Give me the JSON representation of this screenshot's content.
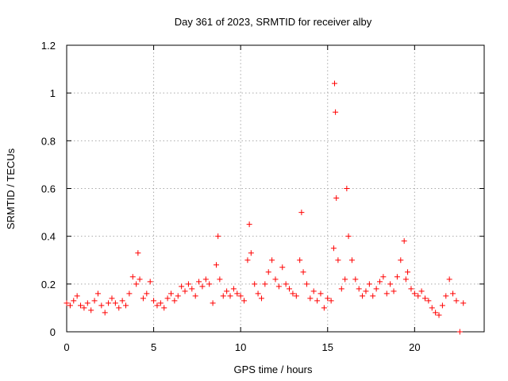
{
  "chart_data": {
    "type": "scatter",
    "title": "Day 361 of 2023, SRMTID for receiver alby",
    "xlabel": "GPS time / hours",
    "ylabel": "SRMTID / TECUs",
    "xlim": [
      0,
      24
    ],
    "ylim": [
      0,
      1.2
    ],
    "x_ticks": [
      0,
      5,
      10,
      15,
      20
    ],
    "x_tick_labels": [
      "0",
      "5",
      "10",
      "15",
      "20"
    ],
    "y_ticks": [
      0,
      0.2,
      0.4,
      0.6,
      0.8,
      1.0,
      1.2
    ],
    "y_tick_labels": [
      "0",
      "0.2",
      "0.4",
      "0.6",
      "0.8",
      "1",
      "1.2"
    ],
    "grid": true,
    "marker": "+",
    "color": "#ff0000",
    "series": [
      {
        "name": "SRMTID",
        "x": [
          0.0,
          0.2,
          0.4,
          0.6,
          0.8,
          1.0,
          1.2,
          1.4,
          1.6,
          1.8,
          2.0,
          2.2,
          2.4,
          2.6,
          2.8,
          3.0,
          3.2,
          3.4,
          3.6,
          3.8,
          4.0,
          4.1,
          4.2,
          4.4,
          4.6,
          4.8,
          5.0,
          5.2,
          5.4,
          5.6,
          5.8,
          6.0,
          6.2,
          6.4,
          6.6,
          6.8,
          7.0,
          7.2,
          7.4,
          7.6,
          7.8,
          8.0,
          8.2,
          8.4,
          8.6,
          8.7,
          8.8,
          9.0,
          9.2,
          9.4,
          9.6,
          9.8,
          10.0,
          10.2,
          10.4,
          10.5,
          10.6,
          10.8,
          11.0,
          11.2,
          11.4,
          11.6,
          11.8,
          12.0,
          12.2,
          12.4,
          12.6,
          12.8,
          13.0,
          13.2,
          13.4,
          13.5,
          13.6,
          13.8,
          14.0,
          14.2,
          14.4,
          14.6,
          14.8,
          15.0,
          15.2,
          15.35,
          15.4,
          15.45,
          15.5,
          15.6,
          15.8,
          16.0,
          16.1,
          16.2,
          16.4,
          16.6,
          16.8,
          17.0,
          17.2,
          17.4,
          17.6,
          17.8,
          18.0,
          18.2,
          18.4,
          18.6,
          18.8,
          19.0,
          19.2,
          19.4,
          19.5,
          19.6,
          19.8,
          20.0,
          20.2,
          20.4,
          20.6,
          20.8,
          21.0,
          21.2,
          21.4,
          21.6,
          21.8,
          22.0,
          22.2,
          22.4,
          22.6,
          22.8
        ],
        "y": [
          0.12,
          0.11,
          0.13,
          0.15,
          0.11,
          0.1,
          0.12,
          0.09,
          0.13,
          0.16,
          0.11,
          0.08,
          0.12,
          0.14,
          0.12,
          0.1,
          0.13,
          0.11,
          0.16,
          0.23,
          0.2,
          0.33,
          0.22,
          0.14,
          0.16,
          0.21,
          0.13,
          0.11,
          0.12,
          0.1,
          0.14,
          0.16,
          0.13,
          0.15,
          0.19,
          0.17,
          0.2,
          0.18,
          0.15,
          0.21,
          0.19,
          0.22,
          0.2,
          0.12,
          0.28,
          0.4,
          0.22,
          0.15,
          0.17,
          0.15,
          0.18,
          0.16,
          0.15,
          0.13,
          0.3,
          0.45,
          0.33,
          0.2,
          0.16,
          0.14,
          0.2,
          0.25,
          0.3,
          0.22,
          0.19,
          0.27,
          0.2,
          0.18,
          0.16,
          0.15,
          0.3,
          0.5,
          0.25,
          0.2,
          0.14,
          0.17,
          0.13,
          0.16,
          0.1,
          0.14,
          0.13,
          0.35,
          1.04,
          0.92,
          0.56,
          0.3,
          0.18,
          0.22,
          0.6,
          0.4,
          0.3,
          0.22,
          0.18,
          0.15,
          0.17,
          0.2,
          0.15,
          0.18,
          0.21,
          0.23,
          0.16,
          0.2,
          0.17,
          0.23,
          0.3,
          0.38,
          0.22,
          0.25,
          0.18,
          0.16,
          0.15,
          0.17,
          0.14,
          0.13,
          0.1,
          0.08,
          0.07,
          0.11,
          0.15,
          0.22,
          0.16,
          0.13,
          0.0,
          0.12
        ]
      }
    ]
  }
}
